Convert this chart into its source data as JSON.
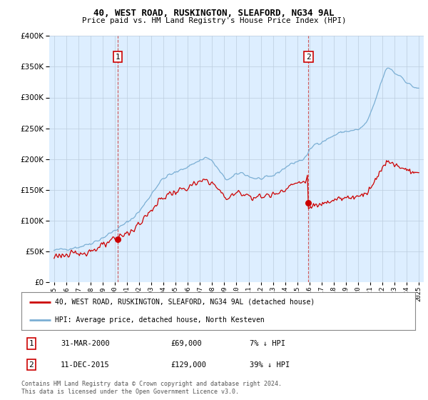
{
  "title": "40, WEST ROAD, RUSKINGTON, SLEAFORD, NG34 9AL",
  "subtitle": "Price paid vs. HM Land Registry's House Price Index (HPI)",
  "legend_property": "40, WEST ROAD, RUSKINGTON, SLEAFORD, NG34 9AL (detached house)",
  "legend_hpi": "HPI: Average price, detached house, North Kesteven",
  "footer": "Contains HM Land Registry data © Crown copyright and database right 2024.\nThis data is licensed under the Open Government Licence v3.0.",
  "property_color": "#cc0000",
  "hpi_color": "#7bafd4",
  "transaction1": {
    "label": "1",
    "date": "31-MAR-2000",
    "price": 69000,
    "hpi_pct": "7% ↓ HPI",
    "x": 2000.25
  },
  "transaction2": {
    "label": "2",
    "date": "11-DEC-2015",
    "price": 129000,
    "hpi_pct": "39% ↓ HPI",
    "x": 2015.92
  },
  "ylim": [
    0,
    400000
  ],
  "xlim": [
    1994.6,
    2025.4
  ],
  "yticks": [
    0,
    50000,
    100000,
    150000,
    200000,
    250000,
    300000,
    350000,
    400000
  ],
  "xticks": [
    1995,
    1996,
    1997,
    1998,
    1999,
    2000,
    2001,
    2002,
    2003,
    2004,
    2005,
    2006,
    2007,
    2008,
    2009,
    2010,
    2011,
    2012,
    2013,
    2014,
    2015,
    2016,
    2017,
    2018,
    2019,
    2020,
    2021,
    2022,
    2023,
    2024,
    2025
  ],
  "bg_color": "#ddeeff",
  "grid_color": "#bbccdd"
}
